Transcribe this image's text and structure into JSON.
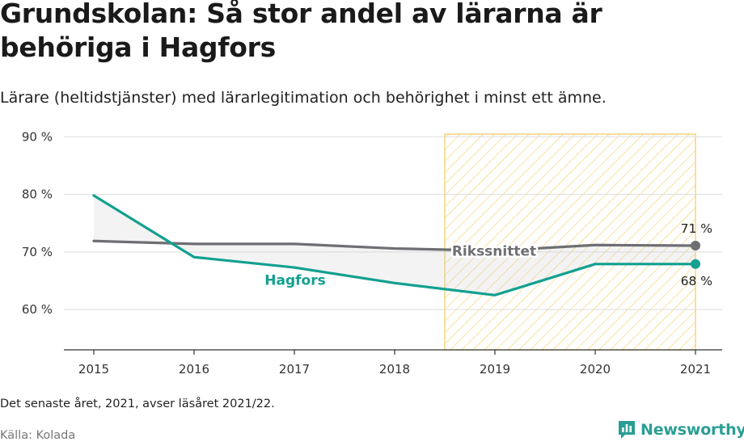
{
  "title": "Grundskolan: Så stor andel av lärarna är behöriga i Hagfors",
  "subtitle": "Lärare (heltidstjänster) med lärarlegitimation och behörighet i minst ett ämne.",
  "note": "Det senaste året, 2021, avser läsåret 2021/22.",
  "source": "Källa: Kolada",
  "logo": {
    "text": "Newsworthy",
    "icon": "bar-chart-icon"
  },
  "colors": {
    "hagfors": "#12a090",
    "riks": "#6e6e73",
    "highlight": "#f5c242",
    "grid": "#dddddd"
  },
  "chart_data": {
    "type": "line",
    "x": [
      2015,
      2016,
      2017,
      2018,
      2019,
      2020,
      2021
    ],
    "x_tick_labels": [
      "2015",
      "2016",
      "2017",
      "2018",
      "2019",
      "2020",
      "2021"
    ],
    "ylim": [
      53,
      92
    ],
    "y_ticks": [
      60,
      70,
      80,
      90
    ],
    "y_tick_labels": [
      "60 %",
      "70 %",
      "80 %",
      "90 %"
    ],
    "grid": true,
    "highlight_range": [
      2018.5,
      2021
    ],
    "series": [
      {
        "name": "Hagfors",
        "key": "hagfors",
        "values": [
          79.8,
          69.1,
          67.3,
          64.6,
          62.5,
          67.9,
          67.9
        ],
        "end_label": "68 %"
      },
      {
        "name": "Rikssnittet",
        "key": "riks",
        "values": [
          71.9,
          71.4,
          71.4,
          70.6,
          70.2,
          71.2,
          71.1
        ],
        "end_label": "71 %"
      }
    ]
  }
}
